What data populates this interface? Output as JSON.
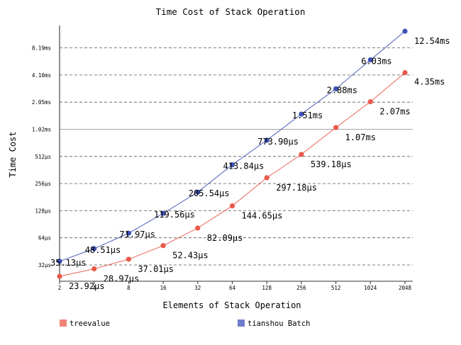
{
  "chart_data": {
    "type": "line",
    "title": "Time Cost of Stack Operation",
    "xlabel": "Elements of Stack Operation",
    "ylabel": "Time Cost",
    "y_scale": "log2",
    "x_scale": "log2",
    "ylim_us": [
      22,
      16000
    ],
    "categories": [
      "2",
      "4",
      "8",
      "16",
      "32",
      "64",
      "128",
      "256",
      "512",
      "1024",
      "2048"
    ],
    "x": [
      2,
      4,
      8,
      16,
      32,
      64,
      128,
      256,
      512,
      1024,
      2048
    ],
    "y_ticks": [
      {
        "value_us": 32,
        "label": "32µs"
      },
      {
        "value_us": 64,
        "label": "64µs"
      },
      {
        "value_us": 128,
        "label": "128µs"
      },
      {
        "value_us": 256,
        "label": "256µs"
      },
      {
        "value_us": 512,
        "label": "512µs"
      },
      {
        "value_us": 1024,
        "label": "1.02ms"
      },
      {
        "value_us": 2048,
        "label": "2.05ms"
      },
      {
        "value_us": 4096,
        "label": "4.10ms"
      },
      {
        "value_us": 8192,
        "label": "8.19ms"
      }
    ],
    "grid": true,
    "legend_position": "bottom",
    "series": [
      {
        "name": "treevalue",
        "color": "#e8594a",
        "values_us": [
          23.92,
          28.97,
          37.01,
          52.43,
          82.09,
          144.65,
          297.18,
          539.18,
          1070,
          2070,
          4350
        ],
        "labels": [
          "23.92µs",
          "28.97µs",
          "37.01µs",
          "52.43µs",
          "82.09µs",
          "144.65µs",
          "297.18µs",
          "539.18µs",
          "1.07ms",
          "2.07ms",
          "4.35ms"
        ]
      },
      {
        "name": "tianshou Batch",
        "color": "#3f51b5",
        "values_us": [
          35.13,
          48.51,
          71.97,
          119.56,
          205.54,
          413.84,
          773.9,
          1510,
          2880,
          6030,
          12540
        ],
        "labels": [
          "35.13µs",
          "48.51µs",
          "71.97µs",
          "119.56µs",
          "205.54µs",
          "413.84µs",
          "773.90µs",
          "1.51ms",
          "2.88ms",
          "6.03ms",
          "12.54ms"
        ]
      }
    ]
  }
}
